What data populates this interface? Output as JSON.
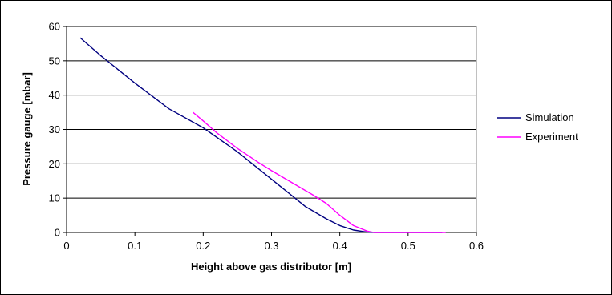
{
  "chart_data": {
    "type": "line",
    "title": "",
    "xlabel": "Height above gas distributor [m]",
    "ylabel": "Pressure gauge [mbar]",
    "xlim": [
      0,
      0.6
    ],
    "ylim": [
      0,
      60
    ],
    "xticks": [
      "0",
      "0.1",
      "0.2",
      "0.3",
      "0.4",
      "0.5",
      "0.6"
    ],
    "yticks": [
      "0",
      "10",
      "20",
      "30",
      "40",
      "50",
      "60"
    ],
    "grid": "horizontal",
    "legend_position": "right",
    "series": [
      {
        "name": "Simulation",
        "color": "#000080",
        "points": [
          [
            0.02,
            56.7
          ],
          [
            0.05,
            51.5
          ],
          [
            0.1,
            43.5
          ],
          [
            0.15,
            36.0
          ],
          [
            0.2,
            30.5
          ],
          [
            0.25,
            23.5
          ],
          [
            0.3,
            15.5
          ],
          [
            0.35,
            7.5
          ],
          [
            0.38,
            4.0
          ],
          [
            0.4,
            2.0
          ],
          [
            0.42,
            0.7
          ],
          [
            0.44,
            0.1
          ],
          [
            0.45,
            0.0
          ],
          [
            0.5,
            0.0
          ],
          [
            0.55,
            0.0
          ]
        ]
      },
      {
        "name": "Experiment",
        "color": "#ff00ff",
        "points": [
          [
            0.185,
            35.0
          ],
          [
            0.2,
            32.5
          ],
          [
            0.22,
            29.0
          ],
          [
            0.25,
            24.5
          ],
          [
            0.28,
            20.5
          ],
          [
            0.3,
            18.0
          ],
          [
            0.33,
            14.5
          ],
          [
            0.36,
            11.0
          ],
          [
            0.38,
            8.5
          ],
          [
            0.4,
            5.0
          ],
          [
            0.42,
            2.0
          ],
          [
            0.44,
            0.4
          ],
          [
            0.45,
            0.0
          ],
          [
            0.5,
            0.0
          ],
          [
            0.555,
            0.0
          ]
        ]
      }
    ]
  }
}
